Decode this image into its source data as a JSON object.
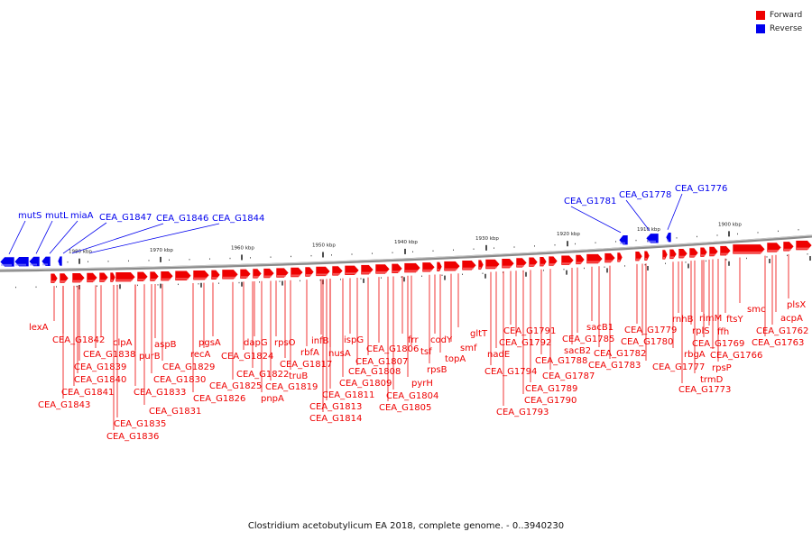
{
  "legend": {
    "forward": {
      "label": "Forward",
      "color": "#ee0000"
    },
    "reverse": {
      "label": "Reverse",
      "color": "#0000ee"
    }
  },
  "caption": "Clostridium acetobutylicum EA 2018, complete genome. - 0..3940230",
  "ticks": [
    {
      "label": "1980 kbp"
    },
    {
      "label": "1970 kbp"
    },
    {
      "label": "1960 kbp"
    },
    {
      "label": "1950 kbp"
    },
    {
      "label": "1940 kbp"
    },
    {
      "label": "1930 kbp"
    },
    {
      "label": "1920 kbp"
    },
    {
      "label": "1910 kbp"
    },
    {
      "label": "1900 kbp"
    }
  ],
  "reverse_labels": [
    {
      "label": "mutS"
    },
    {
      "label": "mutL"
    },
    {
      "label": "miaA"
    },
    {
      "label": "CEA_G1847"
    },
    {
      "label": "CEA_G1846"
    },
    {
      "label": "CEA_G1844"
    },
    {
      "label": "CEA_G1781"
    },
    {
      "label": "CEA_G1778"
    },
    {
      "label": "CEA_G1776"
    }
  ],
  "forward_labels": [
    {
      "label": "lexA"
    },
    {
      "label": "CEA_G1842"
    },
    {
      "label": "CEA_G1838"
    },
    {
      "label": "clpA"
    },
    {
      "label": "CEA_G1839"
    },
    {
      "label": "CEA_G1840"
    },
    {
      "label": "CEA_G1841"
    },
    {
      "label": "CEA_G1843"
    },
    {
      "label": "purB"
    },
    {
      "label": "aspB"
    },
    {
      "label": "CEA_G1829"
    },
    {
      "label": "CEA_G1830"
    },
    {
      "label": "CEA_G1833"
    },
    {
      "label": "CEA_G1831"
    },
    {
      "label": "CEA_G1835"
    },
    {
      "label": "CEA_G1836"
    },
    {
      "label": "pgsA"
    },
    {
      "label": "recA"
    },
    {
      "label": "CEA_G1826"
    },
    {
      "label": "dapG"
    },
    {
      "label": "CEA_G1824"
    },
    {
      "label": "CEA_G1825"
    },
    {
      "label": "CEA_G1822"
    },
    {
      "label": "pnpA"
    },
    {
      "label": "rpsO"
    },
    {
      "label": "CEA_G1817"
    },
    {
      "label": "truB"
    },
    {
      "label": "CEA_G1819"
    },
    {
      "label": "rbfA"
    },
    {
      "label": "infB"
    },
    {
      "label": "nusA"
    },
    {
      "label": "CEA_G1811"
    },
    {
      "label": "CEA_G1813"
    },
    {
      "label": "CEA_G1814"
    },
    {
      "label": "ispG"
    },
    {
      "label": "CEA_G1809"
    },
    {
      "label": "CEA_G1808"
    },
    {
      "label": "CEA_G1807"
    },
    {
      "label": "CEA_G1806"
    },
    {
      "label": "frr"
    },
    {
      "label": "tsf"
    },
    {
      "label": "CEA_G1804"
    },
    {
      "label": "CEA_G1805"
    },
    {
      "label": "pyrH"
    },
    {
      "label": "rpsB"
    },
    {
      "label": "codY"
    },
    {
      "label": "topA"
    },
    {
      "label": "smf"
    },
    {
      "label": "gltT"
    },
    {
      "label": "nadE"
    },
    {
      "label": "CEA_G1794"
    },
    {
      "label": "CEA_G1793"
    },
    {
      "label": "CEA_G1791"
    },
    {
      "label": "CEA_G1792"
    },
    {
      "label": "CEA_G1790"
    },
    {
      "label": "CEA_G1789"
    },
    {
      "label": "CEA_G1788"
    },
    {
      "label": "CEA_G1787"
    },
    {
      "label": "sacB2"
    },
    {
      "label": "sacB1"
    },
    {
      "label": "CEA_G1785"
    },
    {
      "label": "CEA_G1782"
    },
    {
      "label": "CEA_G1783"
    },
    {
      "label": "CEA_G1779"
    },
    {
      "label": "CEA_G1780"
    },
    {
      "label": "CEA_G1777"
    },
    {
      "label": "rbgA"
    },
    {
      "label": "rnhB"
    },
    {
      "label": "rplS"
    },
    {
      "label": "CEA_G1773"
    },
    {
      "label": "trmD"
    },
    {
      "label": "rimM"
    },
    {
      "label": "ffh"
    },
    {
      "label": "rpsP"
    },
    {
      "label": "CEA_G1769"
    },
    {
      "label": "ftsY"
    },
    {
      "label": "CEA_G1766"
    },
    {
      "label": "smc"
    },
    {
      "label": "CEA_G1763"
    },
    {
      "label": "acpA"
    },
    {
      "label": "CEA_G1762"
    },
    {
      "label": "plsX"
    }
  ]
}
